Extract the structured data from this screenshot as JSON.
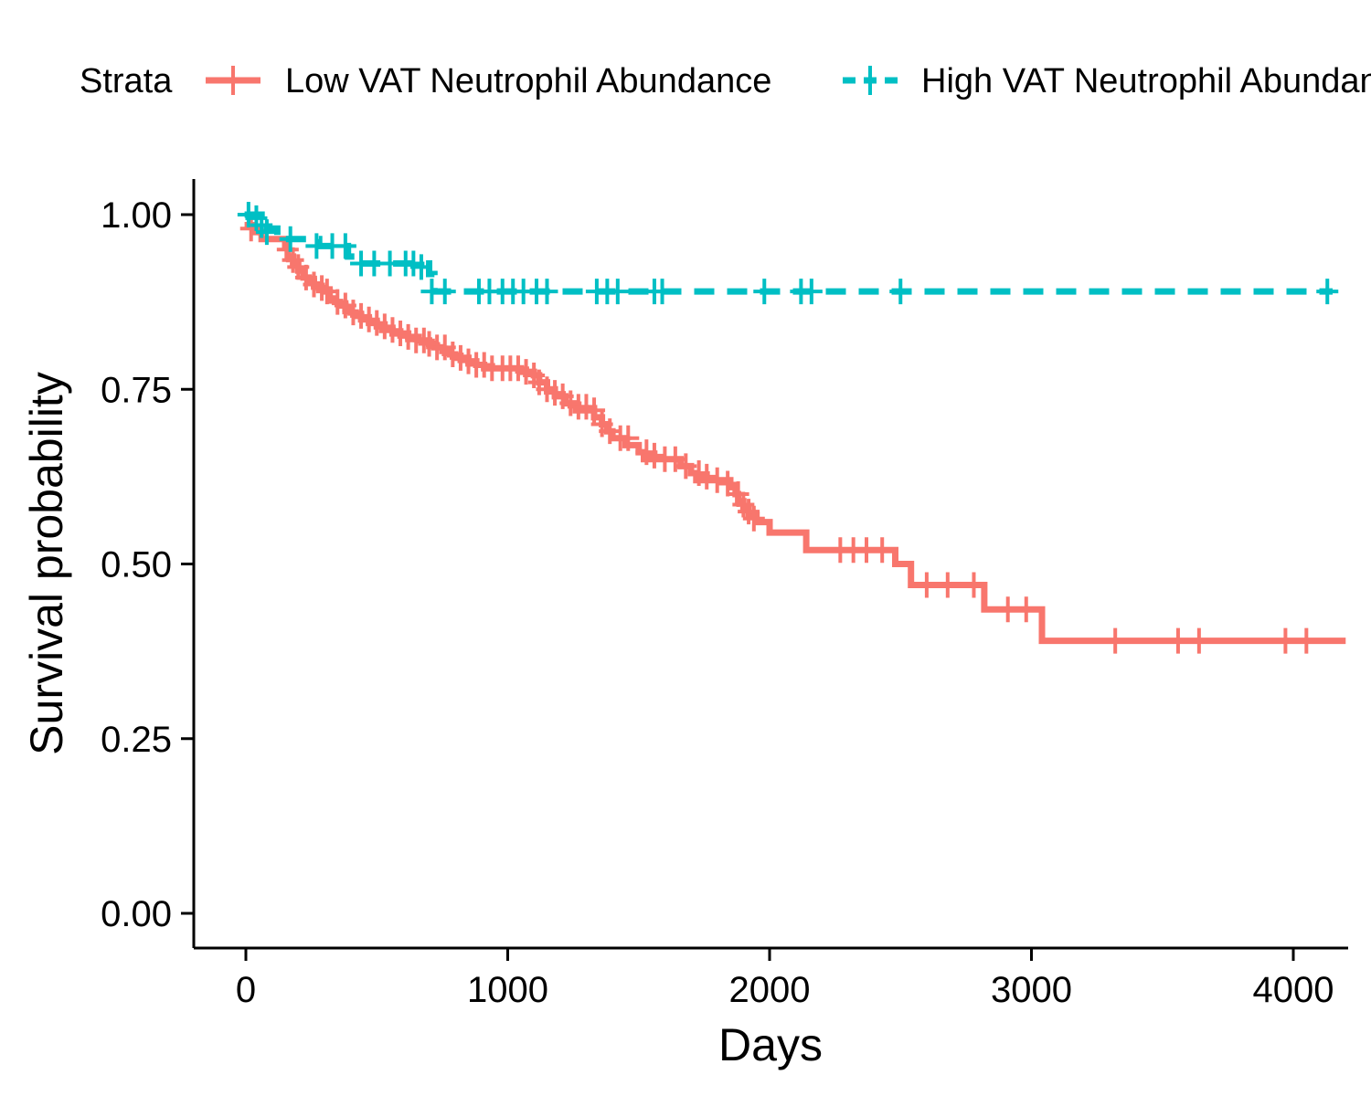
{
  "chart_data": {
    "type": "line",
    "title": "",
    "xlabel": "Days",
    "ylabel": "Survival probability",
    "xlim": [
      -200,
      4200
    ],
    "ylim": [
      -0.05,
      1.05
    ],
    "x_ticks": [
      0,
      1000,
      2000,
      3000,
      4000
    ],
    "y_ticks": [
      0.0,
      0.25,
      0.5,
      0.75,
      1.0
    ],
    "grid": false,
    "legend": {
      "title": "Strata",
      "position": "top"
    },
    "series": [
      {
        "name": "Low VAT Neutrophil Abundance",
        "color": "#F8766D",
        "line_style": "solid",
        "steps": [
          [
            -5,
            0.985
          ],
          [
            30,
            0.975
          ],
          [
            60,
            0.965
          ],
          [
            150,
            0.955
          ],
          [
            160,
            0.94
          ],
          [
            180,
            0.93
          ],
          [
            200,
            0.92
          ],
          [
            220,
            0.91
          ],
          [
            240,
            0.905
          ],
          [
            260,
            0.9
          ],
          [
            280,
            0.895
          ],
          [
            300,
            0.89
          ],
          [
            320,
            0.88
          ],
          [
            340,
            0.875
          ],
          [
            360,
            0.87
          ],
          [
            380,
            0.865
          ],
          [
            400,
            0.86
          ],
          [
            420,
            0.855
          ],
          [
            440,
            0.85
          ],
          [
            470,
            0.845
          ],
          [
            500,
            0.84
          ],
          [
            520,
            0.835
          ],
          [
            560,
            0.83
          ],
          [
            620,
            0.825
          ],
          [
            660,
            0.82
          ],
          [
            700,
            0.815
          ],
          [
            720,
            0.81
          ],
          [
            750,
            0.805
          ],
          [
            780,
            0.8
          ],
          [
            800,
            0.795
          ],
          [
            850,
            0.79
          ],
          [
            880,
            0.785
          ],
          [
            910,
            0.78
          ],
          [
            1050,
            0.775
          ],
          [
            1100,
            0.77
          ],
          [
            1120,
            0.76
          ],
          [
            1150,
            0.75
          ],
          [
            1180,
            0.74
          ],
          [
            1220,
            0.73
          ],
          [
            1260,
            0.72
          ],
          [
            1330,
            0.71
          ],
          [
            1360,
            0.7
          ],
          [
            1380,
            0.69
          ],
          [
            1400,
            0.68
          ],
          [
            1450,
            0.67
          ],
          [
            1500,
            0.66
          ],
          [
            1520,
            0.65
          ],
          [
            1660,
            0.64
          ],
          [
            1700,
            0.63
          ],
          [
            1720,
            0.62
          ],
          [
            1850,
            0.61
          ],
          [
            1870,
            0.6
          ],
          [
            1880,
            0.59
          ],
          [
            1900,
            0.58
          ],
          [
            1920,
            0.57
          ],
          [
            1950,
            0.56
          ],
          [
            2000,
            0.545
          ],
          [
            2140,
            0.52
          ],
          [
            2480,
            0.5
          ],
          [
            2540,
            0.47
          ],
          [
            2820,
            0.435
          ],
          [
            3040,
            0.39
          ],
          [
            4200,
            0.39
          ]
        ],
        "censors": [
          [
            20,
            0.98
          ],
          [
            160,
            0.95
          ],
          [
            180,
            0.935
          ],
          [
            200,
            0.925
          ],
          [
            230,
            0.91
          ],
          [
            260,
            0.9
          ],
          [
            290,
            0.895
          ],
          [
            310,
            0.89
          ],
          [
            350,
            0.875
          ],
          [
            380,
            0.87
          ],
          [
            410,
            0.86
          ],
          [
            440,
            0.855
          ],
          [
            470,
            0.85
          ],
          [
            500,
            0.845
          ],
          [
            530,
            0.84
          ],
          [
            560,
            0.835
          ],
          [
            590,
            0.83
          ],
          [
            620,
            0.825
          ],
          [
            650,
            0.82
          ],
          [
            680,
            0.82
          ],
          [
            700,
            0.815
          ],
          [
            730,
            0.81
          ],
          [
            760,
            0.81
          ],
          [
            790,
            0.8
          ],
          [
            820,
            0.795
          ],
          [
            850,
            0.79
          ],
          [
            880,
            0.785
          ],
          [
            910,
            0.785
          ],
          [
            940,
            0.78
          ],
          [
            980,
            0.78
          ],
          [
            1010,
            0.78
          ],
          [
            1040,
            0.78
          ],
          [
            1070,
            0.775
          ],
          [
            1100,
            0.77
          ],
          [
            1120,
            0.76
          ],
          [
            1150,
            0.75
          ],
          [
            1180,
            0.745
          ],
          [
            1210,
            0.74
          ],
          [
            1240,
            0.73
          ],
          [
            1270,
            0.725
          ],
          [
            1300,
            0.725
          ],
          [
            1330,
            0.72
          ],
          [
            1360,
            0.7
          ],
          [
            1390,
            0.69
          ],
          [
            1430,
            0.68
          ],
          [
            1460,
            0.68
          ],
          [
            1530,
            0.66
          ],
          [
            1560,
            0.655
          ],
          [
            1600,
            0.65
          ],
          [
            1640,
            0.65
          ],
          [
            1680,
            0.64
          ],
          [
            1730,
            0.63
          ],
          [
            1760,
            0.625
          ],
          [
            1800,
            0.62
          ],
          [
            1840,
            0.615
          ],
          [
            1880,
            0.6
          ],
          [
            1900,
            0.585
          ],
          [
            1920,
            0.575
          ],
          [
            1940,
            0.565
          ],
          [
            2270,
            0.52
          ],
          [
            2320,
            0.52
          ],
          [
            2370,
            0.52
          ],
          [
            2430,
            0.52
          ],
          [
            2600,
            0.47
          ],
          [
            2680,
            0.47
          ],
          [
            2780,
            0.47
          ],
          [
            2910,
            0.435
          ],
          [
            2980,
            0.435
          ],
          [
            3320,
            0.39
          ],
          [
            3560,
            0.39
          ],
          [
            3640,
            0.39
          ],
          [
            3970,
            0.39
          ],
          [
            4050,
            0.39
          ]
        ]
      },
      {
        "name": "High VAT Neutrophil Abundance",
        "color": "#00BFC4",
        "line_style": "dashed",
        "steps": [
          [
            -5,
            1.0
          ],
          [
            60,
            0.98
          ],
          [
            120,
            0.965
          ],
          [
            280,
            0.955
          ],
          [
            390,
            0.94
          ],
          [
            420,
            0.93
          ],
          [
            700,
            0.915
          ],
          [
            720,
            0.89
          ],
          [
            4150,
            0.89
          ]
        ],
        "censors": [
          [
            10,
            1.0
          ],
          [
            40,
            0.995
          ],
          [
            60,
            0.985
          ],
          [
            80,
            0.975
          ],
          [
            170,
            0.965
          ],
          [
            270,
            0.955
          ],
          [
            330,
            0.955
          ],
          [
            380,
            0.955
          ],
          [
            440,
            0.93
          ],
          [
            490,
            0.93
          ],
          [
            550,
            0.93
          ],
          [
            610,
            0.93
          ],
          [
            640,
            0.93
          ],
          [
            670,
            0.925
          ],
          [
            710,
            0.89
          ],
          [
            760,
            0.89
          ],
          [
            890,
            0.89
          ],
          [
            930,
            0.89
          ],
          [
            980,
            0.89
          ],
          [
            1020,
            0.89
          ],
          [
            1060,
            0.89
          ],
          [
            1110,
            0.89
          ],
          [
            1150,
            0.89
          ],
          [
            1340,
            0.89
          ],
          [
            1380,
            0.89
          ],
          [
            1420,
            0.89
          ],
          [
            1560,
            0.89
          ],
          [
            1590,
            0.89
          ],
          [
            1980,
            0.89
          ],
          [
            2120,
            0.89
          ],
          [
            2160,
            0.89
          ],
          [
            2500,
            0.89
          ],
          [
            4130,
            0.89
          ]
        ]
      }
    ]
  }
}
